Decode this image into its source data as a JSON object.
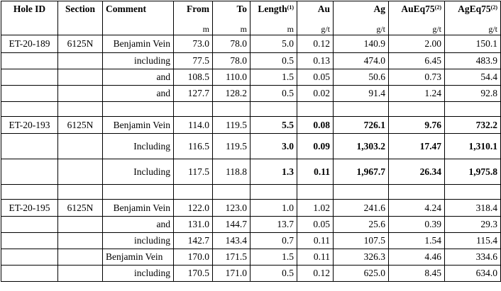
{
  "header": {
    "hole_id": "Hole ID",
    "section": "Section",
    "comment": "Comment",
    "from": "From",
    "to": "To",
    "length": "Length",
    "length_sup": "(1)",
    "au": "Au",
    "ag": "Ag",
    "aueq": "AuEq75",
    "aueq_sup": "(2)",
    "ageq": "AgEq75",
    "ageq_sup": "(2)"
  },
  "units": {
    "from": "m",
    "to": "m",
    "length": "m",
    "au": "g/t",
    "ag": "g/t",
    "aueq": "g/t",
    "ageq": "g/t"
  },
  "rows": [
    {
      "hole": "ET-20-189",
      "section": "6125N",
      "comment": "Benjamin Vein",
      "from": "73.0",
      "to": "78.0",
      "length": "5.0",
      "au": "0.12",
      "ag": "140.9",
      "aueq": "2.00",
      "ageq": "150.1"
    },
    {
      "hole": "",
      "section": "",
      "comment": "including",
      "from": "77.5",
      "to": "78.0",
      "length": "0.5",
      "au": "0.13",
      "ag": "474.0",
      "aueq": "6.45",
      "ageq": "483.9"
    },
    {
      "hole": "",
      "section": "",
      "comment": "and",
      "from": "108.5",
      "to": "110.0",
      "length": "1.5",
      "au": "0.05",
      "ag": "50.6",
      "aueq": "0.73",
      "ageq": "54.4"
    },
    {
      "hole": "",
      "section": "",
      "comment": "and",
      "from": "127.7",
      "to": "128.2",
      "length": "0.5",
      "au": "0.02",
      "ag": "91.4",
      "aueq": "1.24",
      "ageq": "92.8"
    },
    {
      "hole": "ET-20-193",
      "section": "6125N",
      "comment": "Benjamin Vein",
      "from": "114.0",
      "to": "119.5",
      "length": "5.5",
      "au": "0.08",
      "ag": "726.1",
      "aueq": "9.76",
      "ageq": "732.2"
    },
    {
      "hole": "",
      "section": "",
      "comment": "Including",
      "from": "116.5",
      "to": "119.5",
      "length": "3.0",
      "au": "0.09",
      "ag": "1,303.2",
      "aueq": "17.47",
      "ageq": "1,310.1"
    },
    {
      "hole": "",
      "section": "",
      "comment": "Including",
      "from": "117.5",
      "to": "118.8",
      "length": "1.3",
      "au": "0.11",
      "ag": "1,967.7",
      "aueq": "26.34",
      "ageq": "1,975.8"
    },
    {
      "hole": "ET-20-195",
      "section": "6125N",
      "comment": "Benjamin Vein",
      "from": "122.0",
      "to": "123.0",
      "length": "1.0",
      "au": "1.02",
      "ag": "241.6",
      "aueq": "4.24",
      "ageq": "318.4"
    },
    {
      "hole": "",
      "section": "",
      "comment": "and",
      "from": "131.0",
      "to": "144.7",
      "length": "13.7",
      "au": "0.05",
      "ag": "25.6",
      "aueq": "0.39",
      "ageq": "29.3"
    },
    {
      "hole": "",
      "section": "",
      "comment": "including",
      "from": "142.7",
      "to": "143.4",
      "length": "0.7",
      "au": "0.11",
      "ag": "107.5",
      "aueq": "1.54",
      "ageq": "115.4"
    },
    {
      "hole": "",
      "section": "",
      "comment": "Benjamin Vein",
      "from": "170.0",
      "to": "171.5",
      "length": "1.5",
      "au": "0.11",
      "ag": "326.3",
      "aueq": "4.46",
      "ageq": "334.6"
    },
    {
      "hole": "",
      "section": "",
      "comment": "including",
      "from": "170.5",
      "to": "171.0",
      "length": "0.5",
      "au": "0.12",
      "ag": "625.0",
      "aueq": "8.45",
      "ageq": "634.0"
    }
  ]
}
